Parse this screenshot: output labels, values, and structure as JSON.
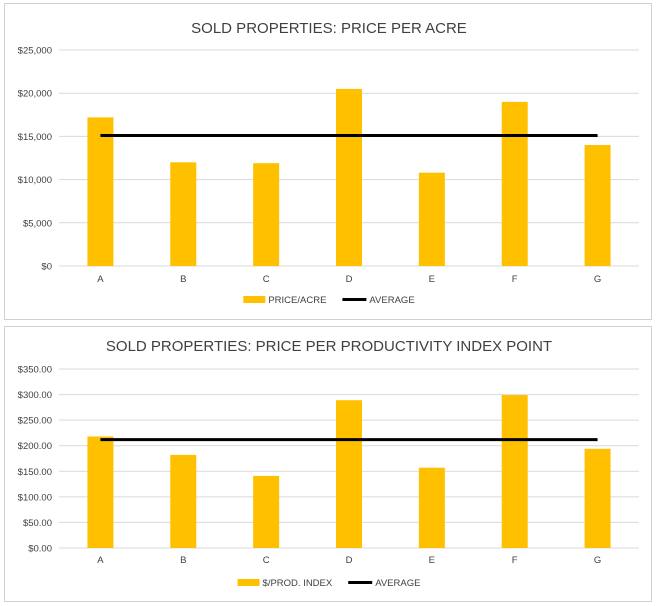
{
  "chart_data": [
    {
      "type": "bar",
      "title": "SOLD PROPERTIES: PRICE PER ACRE",
      "categories": [
        "A",
        "B",
        "C",
        "D",
        "E",
        "F",
        "G"
      ],
      "series": [
        {
          "name": "PRICE/ACRE",
          "type": "bar",
          "values": [
            17200,
            12000,
            11900,
            20500,
            10800,
            19000,
            14000
          ],
          "color": "#FFC000"
        },
        {
          "name": "AVERAGE",
          "type": "line",
          "values": [
            15100,
            15100,
            15100,
            15100,
            15100,
            15100,
            15100
          ],
          "color": "#000000"
        }
      ],
      "ylim": [
        0,
        25000
      ],
      "yticks": [
        "$0",
        "$5,000",
        "$10,000",
        "$15,000",
        "$20,000",
        "$25,000"
      ],
      "grid": true,
      "legend": "bottom"
    },
    {
      "type": "bar",
      "title": "SOLD PROPERTIES: PRICE PER PRODUCTIVITY INDEX  POINT",
      "categories": [
        "A",
        "B",
        "C",
        "D",
        "E",
        "F",
        "G"
      ],
      "series": [
        {
          "name": "$/PROD. INDEX",
          "type": "bar",
          "values": [
            218,
            182,
            141,
            289,
            157,
            299,
            194
          ],
          "color": "#FFC000"
        },
        {
          "name": "AVERAGE",
          "type": "line",
          "values": [
            212,
            212,
            212,
            212,
            212,
            212,
            212
          ],
          "color": "#000000"
        }
      ],
      "ylim": [
        0,
        350
      ],
      "yticks": [
        "$0.00",
        "$50.00",
        "$100.00",
        "$150.00",
        "$200.00",
        "$250.00",
        "$300.00",
        "$350.00"
      ],
      "grid": true,
      "legend": "bottom"
    }
  ]
}
